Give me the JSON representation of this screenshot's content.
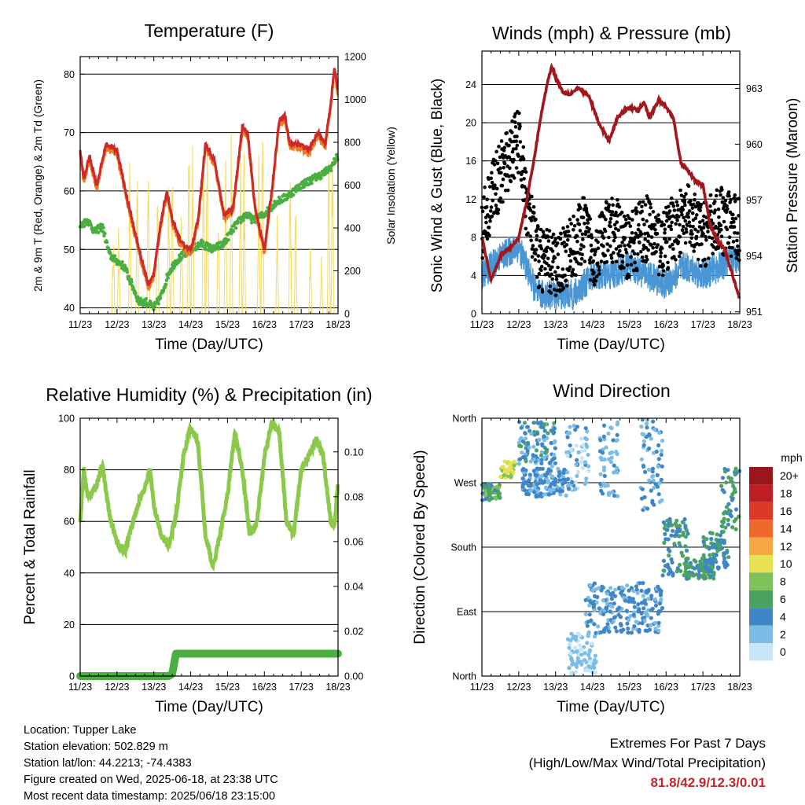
{
  "xticks": [
    "11/23",
    "12/23",
    "13/23",
    "14/23",
    "15/23",
    "16/23",
    "17/23",
    "18/23"
  ],
  "colors": {
    "temp2m": "#cc2a2a",
    "temp9m": "#ee7b22",
    "dewpoint": "#4aae40",
    "solar": "#f5d856",
    "wind": "#4a96d4",
    "gust": "#000000",
    "pressure": "#a0181c",
    "rh": "#8cc84b",
    "precip": "#4aae40",
    "extremes": "#c0282d"
  },
  "charts": {
    "temperature": {
      "title": "Temperature (F)",
      "xlabel": "Time (Day/UTC)",
      "ylabel_left": "2m & 9m T (Red, Orange) & 2m Td (Green)",
      "ylabel_right": "Solar Insolation (Yellow)",
      "yticks_left": [
        "40",
        "50",
        "60",
        "70",
        "80"
      ],
      "yticks_right": [
        "0",
        "200",
        "400",
        "600",
        "800",
        "1000",
        "1200"
      ]
    },
    "winds": {
      "title": "Winds (mph) & Pressure (mb)",
      "xlabel": "Time (Day/UTC)",
      "ylabel_left": "Sonic Wind & Gust (Blue, Black)",
      "ylabel_right": "Station Pressure (Maroon)",
      "yticks_left": [
        "0",
        "4",
        "8",
        "12",
        "16",
        "20",
        "24"
      ],
      "yticks_right": [
        "951",
        "954",
        "957",
        "960",
        "963"
      ]
    },
    "humidity": {
      "title": "Relative Humidity (%) & Precipitation (in)",
      "xlabel": "Time (Day/UTC)",
      "ylabel_left": "Percent & Total Rainfall",
      "yticks_left": [
        "0",
        "20",
        "40",
        "60",
        "80",
        "100"
      ],
      "yticks_right": [
        "0.00",
        "0.02",
        "0.04",
        "0.06",
        "0.08",
        "0.10"
      ]
    },
    "direction": {
      "title": "Wind Direction",
      "xlabel": "Time (Day/UTC)",
      "ylabel_left": "Direction (Colored By Speed)",
      "yticks_left": [
        "North",
        "East",
        "South",
        "West",
        "North"
      ],
      "legend_title": "mph",
      "legend_labels": [
        "0",
        "2",
        "4",
        "6",
        "8",
        "10",
        "12",
        "14",
        "16",
        "18",
        "20+"
      ],
      "legend_colors": [
        "#c6e6f7",
        "#7cbce6",
        "#3f86c6",
        "#4aa360",
        "#7fc25a",
        "#e8e153",
        "#f7a845",
        "#ee6a2c",
        "#dc3a28",
        "#bf1f24",
        "#99171b"
      ]
    }
  },
  "chart_data": [
    {
      "type": "line",
      "title": "Temperature (F)",
      "xlabel": "Time (Day/UTC)",
      "ylabel": "2m & 9m T (Red, Orange) & 2m Td (Green)",
      "y2label": "Solar Insolation (Yellow)",
      "x": [
        "11/23",
        "12/23",
        "13/23",
        "14/23",
        "15/23",
        "16/23",
        "17/23",
        "18/23"
      ],
      "xlim": [
        0,
        7
      ],
      "ylim": [
        39,
        83
      ],
      "y2lim": [
        0,
        1200
      ],
      "series": [
        {
          "key": "temp",
          "color": "#cc2a2a",
          "points": [
            [
              0,
              67
            ],
            [
              0.1,
              62
            ],
            [
              0.25,
              66
            ],
            [
              0.45,
              61
            ],
            [
              0.7,
              68
            ],
            [
              1.0,
              67
            ],
            [
              1.3,
              58
            ],
            [
              1.6,
              50
            ],
            [
              1.85,
              44
            ],
            [
              2.0,
              46
            ],
            [
              2.2,
              55
            ],
            [
              2.35,
              60
            ],
            [
              2.5,
              55
            ],
            [
              2.75,
              51
            ],
            [
              3.0,
              50
            ],
            [
              3.2,
              55
            ],
            [
              3.4,
              68
            ],
            [
              3.65,
              65
            ],
            [
              3.9,
              56
            ],
            [
              4.15,
              57
            ],
            [
              4.4,
              71
            ],
            [
              4.55,
              70
            ],
            [
              4.75,
              57
            ],
            [
              5.0,
              50
            ],
            [
              5.2,
              60
            ],
            [
              5.4,
              72
            ],
            [
              5.55,
              73
            ],
            [
              5.7,
              68
            ],
            [
              6.0,
              68
            ],
            [
              6.2,
              67
            ],
            [
              6.45,
              70
            ],
            [
              6.65,
              68
            ],
            [
              6.8,
              75
            ],
            [
              6.9,
              81
            ],
            [
              7.0,
              77
            ]
          ]
        },
        {
          "key": "dewpoint",
          "color": "#4aae40",
          "points": [
            [
              0,
              54
            ],
            [
              0.2,
              55
            ],
            [
              0.4,
              53
            ],
            [
              0.6,
              54
            ],
            [
              0.8,
              49
            ],
            [
              1.0,
              48
            ],
            [
              1.2,
              47
            ],
            [
              1.4,
              44
            ],
            [
              1.6,
              41
            ],
            [
              1.8,
              41
            ],
            [
              2.0,
              40
            ],
            [
              2.2,
              42
            ],
            [
              2.4,
              46
            ],
            [
              2.6,
              48
            ],
            [
              2.8,
              49
            ],
            [
              3.0,
              50
            ],
            [
              3.3,
              51
            ],
            [
              3.6,
              50
            ],
            [
              3.9,
              51
            ],
            [
              4.2,
              54
            ],
            [
              4.5,
              56
            ],
            [
              4.7,
              55
            ],
            [
              5.0,
              56
            ],
            [
              5.3,
              58
            ],
            [
              5.6,
              59
            ],
            [
              6.0,
              61
            ],
            [
              6.3,
              62
            ],
            [
              6.6,
              63
            ],
            [
              6.8,
              64
            ],
            [
              7.0,
              66
            ]
          ]
        }
      ],
      "solar_peaks": [
        [
          0.9,
          480
        ],
        [
          1.05,
          500
        ],
        [
          1.35,
          820
        ],
        [
          1.55,
          750
        ],
        [
          1.85,
          830
        ],
        [
          2.1,
          800
        ],
        [
          2.4,
          850
        ],
        [
          2.5,
          900
        ],
        [
          2.75,
          600
        ],
        [
          2.95,
          1110
        ],
        [
          3.05,
          950
        ],
        [
          3.35,
          1100
        ],
        [
          3.45,
          1000
        ],
        [
          3.75,
          600
        ],
        [
          3.95,
          880
        ],
        [
          4.1,
          1000
        ],
        [
          4.35,
          950
        ],
        [
          4.45,
          800
        ],
        [
          4.85,
          900
        ],
        [
          4.95,
          1180
        ],
        [
          5.35,
          500
        ],
        [
          5.7,
          850
        ],
        [
          5.85,
          600
        ],
        [
          6.25,
          400
        ],
        [
          6.55,
          300
        ],
        [
          6.75,
          900
        ],
        [
          6.85,
          1030
        ]
      ]
    },
    {
      "type": "line",
      "title": "Winds (mph) & Pressure (mb)",
      "xlabel": "Time (Day/UTC)",
      "ylabel": "Sonic Wind & Gust (Blue, Black)",
      "y2label": "Station Pressure (Maroon)",
      "x": [
        "11/23",
        "12/23",
        "13/23",
        "14/23",
        "15/23",
        "16/23",
        "17/23",
        "18/23"
      ],
      "xlim": [
        0,
        7
      ],
      "ylim": [
        0,
        27.5
      ],
      "y2lim": [
        950.9,
        965.0
      ],
      "pressure": [
        [
          0,
          955.0
        ],
        [
          0.25,
          952.7
        ],
        [
          0.5,
          954.0
        ],
        [
          0.8,
          954.5
        ],
        [
          1.0,
          955.0
        ],
        [
          1.2,
          956.8
        ],
        [
          1.4,
          959.0
        ],
        [
          1.6,
          961.5
        ],
        [
          1.8,
          963.5
        ],
        [
          1.9,
          964.2
        ],
        [
          2.0,
          963.6
        ],
        [
          2.2,
          962.8
        ],
        [
          2.4,
          962.7
        ],
        [
          2.6,
          963.0
        ],
        [
          2.9,
          962.6
        ],
        [
          3.2,
          961.0
        ],
        [
          3.45,
          960.2
        ],
        [
          3.7,
          961.5
        ],
        [
          4.0,
          962.0
        ],
        [
          4.25,
          961.8
        ],
        [
          4.4,
          962.3
        ],
        [
          4.55,
          961.4
        ],
        [
          4.8,
          962.4
        ],
        [
          5.0,
          962.0
        ],
        [
          5.2,
          961.4
        ],
        [
          5.4,
          959.0
        ],
        [
          5.6,
          958.6
        ],
        [
          5.8,
          958.0
        ],
        [
          6.0,
          957.8
        ],
        [
          6.2,
          955.6
        ],
        [
          6.4,
          954.8
        ],
        [
          6.6,
          954.3
        ],
        [
          6.8,
          953.0
        ],
        [
          7.0,
          951.7
        ]
      ],
      "wind_levels": [
        [
          0,
          4
        ],
        [
          0.5,
          6
        ],
        [
          1.0,
          7
        ],
        [
          1.3,
          4
        ],
        [
          1.5,
          2
        ],
        [
          2.0,
          2
        ],
        [
          2.5,
          2
        ],
        [
          3.0,
          4
        ],
        [
          3.5,
          4
        ],
        [
          4.0,
          5
        ],
        [
          4.5,
          4
        ],
        [
          5.0,
          3
        ],
        [
          5.5,
          5
        ],
        [
          6.0,
          4
        ],
        [
          6.5,
          5
        ],
        [
          7.0,
          6
        ]
      ],
      "gust_levels": [
        [
          0,
          9
        ],
        [
          0.3,
          13
        ],
        [
          0.6,
          15
        ],
        [
          0.8,
          17
        ],
        [
          1.0,
          18
        ],
        [
          1.2,
          12
        ],
        [
          1.5,
          6
        ],
        [
          2.0,
          5
        ],
        [
          2.5,
          7
        ],
        [
          2.8,
          9
        ],
        [
          3.0,
          6
        ],
        [
          3.3,
          8
        ],
        [
          3.6,
          9
        ],
        [
          3.9,
          7
        ],
        [
          4.2,
          8
        ],
        [
          4.5,
          9
        ],
        [
          4.9,
          7
        ],
        [
          5.2,
          9
        ],
        [
          5.6,
          10
        ],
        [
          6.0,
          8
        ],
        [
          6.4,
          10
        ],
        [
          6.8,
          9
        ],
        [
          7.0,
          9
        ]
      ]
    },
    {
      "type": "line",
      "title": "Relative Humidity (%) & Precipitation (in)",
      "xlabel": "Time (Day/UTC)",
      "ylabel": "Percent & Total Rainfall",
      "x": [
        "11/23",
        "12/23",
        "13/23",
        "14/23",
        "15/23",
        "16/23",
        "17/23",
        "18/23"
      ],
      "xlim": [
        0,
        7
      ],
      "ylim": [
        0,
        100
      ],
      "y2lim": [
        0,
        0.115
      ],
      "rh": [
        [
          0,
          60
        ],
        [
          0.1,
          80
        ],
        [
          0.2,
          70
        ],
        [
          0.4,
          72
        ],
        [
          0.6,
          82
        ],
        [
          0.8,
          62
        ],
        [
          1.0,
          52
        ],
        [
          1.2,
          48
        ],
        [
          1.4,
          58
        ],
        [
          1.6,
          68
        ],
        [
          1.8,
          75
        ],
        [
          1.9,
          80
        ],
        [
          2.0,
          66
        ],
        [
          2.2,
          55
        ],
        [
          2.4,
          50
        ],
        [
          2.6,
          62
        ],
        [
          2.8,
          85
        ],
        [
          3.0,
          97
        ],
        [
          3.2,
          90
        ],
        [
          3.4,
          55
        ],
        [
          3.6,
          42
        ],
        [
          3.8,
          55
        ],
        [
          4.0,
          70
        ],
        [
          4.2,
          95
        ],
        [
          4.4,
          80
        ],
        [
          4.6,
          55
        ],
        [
          4.8,
          60
        ],
        [
          5.0,
          85
        ],
        [
          5.2,
          98
        ],
        [
          5.4,
          95
        ],
        [
          5.6,
          60
        ],
        [
          5.8,
          55
        ],
        [
          6.0,
          80
        ],
        [
          6.2,
          85
        ],
        [
          6.4,
          92
        ],
        [
          6.6,
          85
        ],
        [
          6.8,
          60
        ],
        [
          6.9,
          58
        ],
        [
          7.0,
          75
        ]
      ],
      "precip": [
        [
          0,
          0
        ],
        [
          2.4,
          0
        ],
        [
          2.5,
          0.001
        ],
        [
          2.6,
          0.01
        ],
        [
          7.0,
          0.01
        ]
      ]
    },
    {
      "type": "scatter",
      "title": "Wind Direction",
      "xlabel": "Time (Day/UTC)",
      "ylabel": "Direction (Colored By Speed)",
      "x": [
        "11/23",
        "12/23",
        "13/23",
        "14/23",
        "15/23",
        "16/23",
        "17/23",
        "18/23"
      ],
      "xlim": [
        0,
        7
      ],
      "ylim": [
        0,
        360
      ],
      "y_categories": [
        "North",
        "East",
        "South",
        "West",
        "North"
      ],
      "colorbar_unit": "mph",
      "clusters": [
        {
          "t": [
            0.0,
            0.5
          ],
          "dir": [
            245,
            270
          ],
          "speed": [
            4,
            8
          ]
        },
        {
          "t": [
            0.5,
            0.9
          ],
          "dir": [
            275,
            300
          ],
          "speed": [
            8,
            11
          ]
        },
        {
          "t": [
            1.0,
            2.0
          ],
          "dir": [
            290,
            355
          ],
          "speed": [
            2,
            6
          ]
        },
        {
          "t": [
            1.1,
            2.3
          ],
          "dir": [
            250,
            290
          ],
          "speed": [
            2,
            5
          ]
        },
        {
          "t": [
            2.3,
            2.9
          ],
          "dir": [
            260,
            350
          ],
          "speed": [
            0,
            4
          ]
        },
        {
          "t": [
            2.3,
            3.1
          ],
          "dir": [
            0,
            60
          ],
          "speed": [
            0,
            3
          ]
        },
        {
          "t": [
            2.8,
            4.9
          ],
          "dir": [
            60,
            130
          ],
          "speed": [
            2,
            5
          ]
        },
        {
          "t": [
            3.2,
            3.7
          ],
          "dir": [
            250,
            360
          ],
          "speed": [
            1,
            4
          ]
        },
        {
          "t": [
            4.3,
            4.9
          ],
          "dir": [
            230,
            360
          ],
          "speed": [
            1,
            5
          ]
        },
        {
          "t": [
            4.9,
            5.6
          ],
          "dir": [
            140,
            220
          ],
          "speed": [
            3,
            6
          ]
        },
        {
          "t": [
            5.5,
            6.3
          ],
          "dir": [
            135,
            165
          ],
          "speed": [
            4,
            7
          ]
        },
        {
          "t": [
            6.0,
            6.7
          ],
          "dir": [
            150,
            200
          ],
          "speed": [
            3,
            6
          ]
        },
        {
          "t": [
            6.5,
            7.0
          ],
          "dir": [
            200,
            290
          ],
          "speed": [
            4,
            7
          ]
        }
      ]
    }
  ],
  "info": [
    "Location: Tupper Lake",
    "Station elevation: 502.829 m",
    "Station lat/lon: 44.2213; -74.4383",
    "Figure created on Wed, 2025-06-18, at 23:38 UTC",
    "Most recent data timestamp: 2025/06/18 23:15:00"
  ],
  "extremes": {
    "heading": "Extremes For Past 7 Days",
    "subheading": "(High/Low/Max Wind/Total Precipitation)",
    "values": "81.8/42.9/12.3/0.01"
  }
}
